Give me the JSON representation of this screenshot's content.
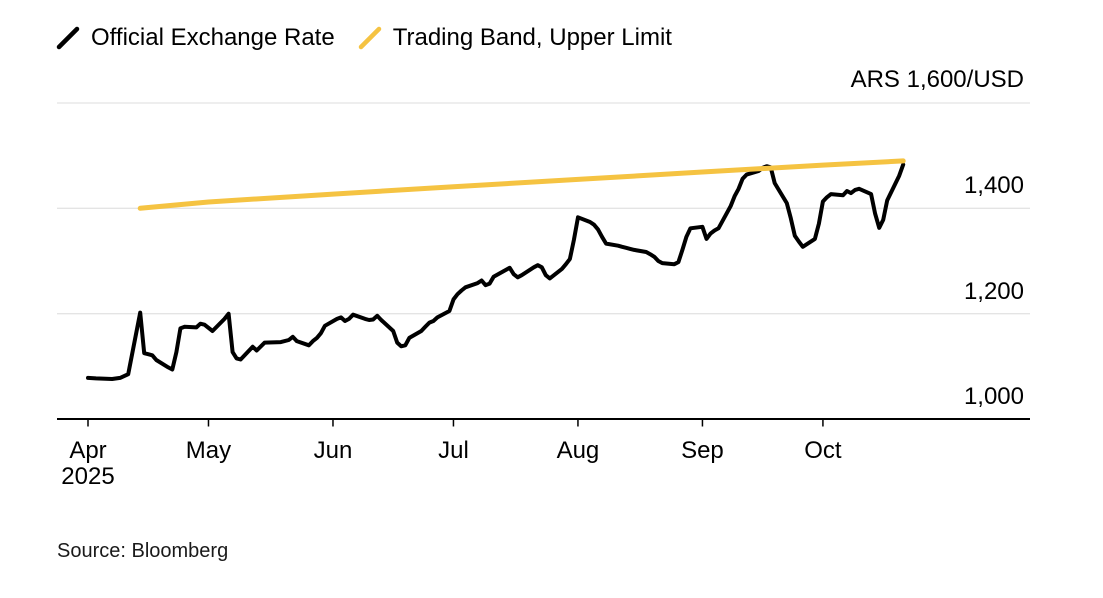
{
  "source": "Source: Bloomberg",
  "colors": {
    "background": "#ffffff",
    "gridline": "#e4e4e4",
    "axis": "#000000",
    "official_rate": "#000000",
    "trading_band": "#f5c342"
  },
  "chart_data": {
    "type": "line",
    "grid": true,
    "legend_position": "top-left",
    "y_axis": {
      "unit_label": "ARS 1,600/USD",
      "min": 1000,
      "max": 1600,
      "grid_values": [
        1600,
        1400,
        1200
      ],
      "ticks": [
        {
          "value": 1400,
          "label": "1,400"
        },
        {
          "value": 1200,
          "label": "1,200"
        },
        {
          "value": 1000,
          "label": "1,000"
        }
      ]
    },
    "x_axis": {
      "year_label": "2025",
      "range": [
        "2025-04-01",
        "2025-10-21"
      ],
      "ticks": [
        {
          "label": "Apr",
          "month": 4
        },
        {
          "label": "May",
          "month": 5
        },
        {
          "label": "Jun",
          "month": 6
        },
        {
          "label": "Jul",
          "month": 7
        },
        {
          "label": "Aug",
          "month": 8
        },
        {
          "label": "Sep",
          "month": 9
        },
        {
          "label": "Oct",
          "month": 10
        }
      ]
    },
    "series": [
      {
        "name": "Official Exchange Rate",
        "color": "#000000",
        "width": 4,
        "points": [
          [
            "04-01",
            1078
          ],
          [
            "04-03",
            1077
          ],
          [
            "04-07",
            1076
          ],
          [
            "04-09",
            1078
          ],
          [
            "04-11",
            1085
          ],
          [
            "04-14",
            1202
          ],
          [
            "04-15",
            1125
          ],
          [
            "04-16",
            1123
          ],
          [
            "04-17",
            1121
          ],
          [
            "04-18",
            1112
          ],
          [
            "04-21",
            1098
          ],
          [
            "04-22",
            1094
          ],
          [
            "04-23",
            1127
          ],
          [
            "04-24",
            1172
          ],
          [
            "04-25",
            1175
          ],
          [
            "04-28",
            1174
          ],
          [
            "04-29",
            1181
          ],
          [
            "04-30",
            1179
          ],
          [
            "05-02",
            1167
          ],
          [
            "05-05",
            1190
          ],
          [
            "05-06",
            1200
          ],
          [
            "05-07",
            1127
          ],
          [
            "05-08",
            1115
          ],
          [
            "05-09",
            1113
          ],
          [
            "05-12",
            1137
          ],
          [
            "05-13",
            1130
          ],
          [
            "05-15",
            1145
          ],
          [
            "05-19",
            1146
          ],
          [
            "05-21",
            1150
          ],
          [
            "05-22",
            1156
          ],
          [
            "05-23",
            1148
          ],
          [
            "05-26",
            1140
          ],
          [
            "05-27",
            1148
          ],
          [
            "05-28",
            1154
          ],
          [
            "05-29",
            1163
          ],
          [
            "05-30",
            1177
          ],
          [
            "06-02",
            1190
          ],
          [
            "06-03",
            1193
          ],
          [
            "06-04",
            1186
          ],
          [
            "06-05",
            1190
          ],
          [
            "06-06",
            1198
          ],
          [
            "06-09",
            1190
          ],
          [
            "06-10",
            1188
          ],
          [
            "06-11",
            1189
          ],
          [
            "06-12",
            1196
          ],
          [
            "06-13",
            1188
          ],
          [
            "06-16",
            1167
          ],
          [
            "06-17",
            1145
          ],
          [
            "06-18",
            1138
          ],
          [
            "06-19",
            1140
          ],
          [
            "06-20",
            1154
          ],
          [
            "06-23",
            1167
          ],
          [
            "06-24",
            1175
          ],
          [
            "06-25",
            1183
          ],
          [
            "06-26",
            1186
          ],
          [
            "06-27",
            1193
          ],
          [
            "06-30",
            1205
          ],
          [
            "07-01",
            1227
          ],
          [
            "07-02",
            1237
          ],
          [
            "07-03",
            1244
          ],
          [
            "07-04",
            1250
          ],
          [
            "07-07",
            1258
          ],
          [
            "07-08",
            1263
          ],
          [
            "07-09",
            1254
          ],
          [
            "07-10",
            1257
          ],
          [
            "07-11",
            1270
          ],
          [
            "07-14",
            1283
          ],
          [
            "07-15",
            1287
          ],
          [
            "07-16",
            1275
          ],
          [
            "07-17",
            1269
          ],
          [
            "07-18",
            1273
          ],
          [
            "07-21",
            1288
          ],
          [
            "07-22",
            1292
          ],
          [
            "07-23",
            1288
          ],
          [
            "07-24",
            1273
          ],
          [
            "07-25",
            1267
          ],
          [
            "07-28",
            1285
          ],
          [
            "07-29",
            1294
          ],
          [
            "07-30",
            1304
          ],
          [
            "07-31",
            1340
          ],
          [
            "08-01",
            1383
          ],
          [
            "08-04",
            1374
          ],
          [
            "08-05",
            1369
          ],
          [
            "08-06",
            1360
          ],
          [
            "08-07",
            1346
          ],
          [
            "08-08",
            1333
          ],
          [
            "08-11",
            1329
          ],
          [
            "08-12",
            1327
          ],
          [
            "08-13",
            1325
          ],
          [
            "08-14",
            1323
          ],
          [
            "08-15",
            1321
          ],
          [
            "08-18",
            1317
          ],
          [
            "08-19",
            1313
          ],
          [
            "08-20",
            1308
          ],
          [
            "08-21",
            1300
          ],
          [
            "08-22",
            1296
          ],
          [
            "08-25",
            1294
          ],
          [
            "08-26",
            1298
          ],
          [
            "08-27",
            1321
          ],
          [
            "08-28",
            1346
          ],
          [
            "08-29",
            1362
          ],
          [
            "09-01",
            1365
          ],
          [
            "09-02",
            1342
          ],
          [
            "09-03",
            1352
          ],
          [
            "09-04",
            1358
          ],
          [
            "09-05",
            1362
          ],
          [
            "09-08",
            1404
          ],
          [
            "09-09",
            1423
          ],
          [
            "09-10",
            1437
          ],
          [
            "09-11",
            1456
          ],
          [
            "09-12",
            1464
          ],
          [
            "09-15",
            1471
          ],
          [
            "09-16",
            1477
          ],
          [
            "09-17",
            1480
          ],
          [
            "09-18",
            1478
          ],
          [
            "09-19",
            1448
          ],
          [
            "09-22",
            1410
          ],
          [
            "09-23",
            1381
          ],
          [
            "09-24",
            1348
          ],
          [
            "09-25",
            1337
          ],
          [
            "09-26",
            1327
          ],
          [
            "09-29",
            1342
          ],
          [
            "09-30",
            1371
          ],
          [
            "10-01",
            1413
          ],
          [
            "10-02",
            1421
          ],
          [
            "10-03",
            1427
          ],
          [
            "10-06",
            1425
          ],
          [
            "10-07",
            1433
          ],
          [
            "10-08",
            1429
          ],
          [
            "10-09",
            1435
          ],
          [
            "10-10",
            1437
          ],
          [
            "10-13",
            1427
          ],
          [
            "10-14",
            1390
          ],
          [
            "10-15",
            1363
          ],
          [
            "10-16",
            1378
          ],
          [
            "10-17",
            1415
          ],
          [
            "10-20",
            1462
          ],
          [
            "10-21",
            1483
          ]
        ]
      },
      {
        "name": "Trading Band, Upper Limit",
        "color": "#f5c342",
        "width": 5,
        "points": [
          [
            "04-14",
            1400
          ],
          [
            "05-01",
            1412
          ],
          [
            "06-01",
            1427
          ],
          [
            "07-01",
            1441
          ],
          [
            "08-01",
            1455
          ],
          [
            "09-01",
            1469
          ],
          [
            "10-01",
            1482
          ],
          [
            "10-21",
            1490
          ]
        ]
      }
    ]
  }
}
